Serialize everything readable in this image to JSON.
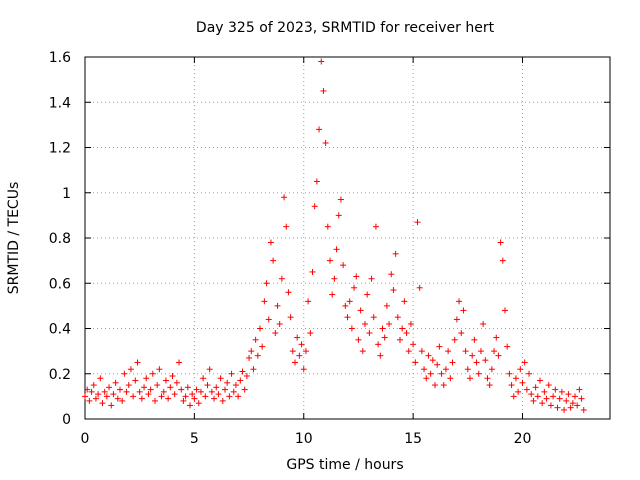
{
  "chart_data": {
    "type": "scatter",
    "title": "Day 325 of 2023, SRMTID for receiver hert",
    "xlabel": "GPS time / hours",
    "ylabel": "SRMTID / TECUs",
    "xlim": [
      0,
      24
    ],
    "ylim": [
      0,
      1.6
    ],
    "xticks": [
      0,
      5,
      10,
      15,
      20
    ],
    "yticks": [
      0,
      0.2,
      0.4,
      0.6,
      0.8,
      1,
      1.2,
      1.4,
      1.6
    ],
    "xtick_labels": [
      "0",
      "5",
      "10",
      "15",
      "20"
    ],
    "ytick_labels": [
      "0",
      "0.2",
      "0.4",
      "0.6",
      "0.8",
      "1",
      "1.2",
      "1.4",
      "1.6"
    ],
    "grid": true,
    "marker": "+",
    "series": [
      {
        "name": "SRMTID",
        "color": "#ff0000",
        "points": [
          [
            0.0,
            0.1
          ],
          [
            0.1,
            0.13
          ],
          [
            0.2,
            0.08
          ],
          [
            0.3,
            0.12
          ],
          [
            0.4,
            0.15
          ],
          [
            0.5,
            0.09
          ],
          [
            0.6,
            0.11
          ],
          [
            0.7,
            0.18
          ],
          [
            0.8,
            0.07
          ],
          [
            0.9,
            0.12
          ],
          [
            1.0,
            0.1
          ],
          [
            1.1,
            0.14
          ],
          [
            1.2,
            0.06
          ],
          [
            1.3,
            0.11
          ],
          [
            1.4,
            0.16
          ],
          [
            1.5,
            0.09
          ],
          [
            1.6,
            0.13
          ],
          [
            1.7,
            0.08
          ],
          [
            1.8,
            0.2
          ],
          [
            1.9,
            0.12
          ],
          [
            2.0,
            0.15
          ],
          [
            2.1,
            0.22
          ],
          [
            2.2,
            0.1
          ],
          [
            2.3,
            0.17
          ],
          [
            2.4,
            0.25
          ],
          [
            2.5,
            0.12
          ],
          [
            2.6,
            0.09
          ],
          [
            2.7,
            0.14
          ],
          [
            2.8,
            0.18
          ],
          [
            2.9,
            0.11
          ],
          [
            3.0,
            0.13
          ],
          [
            3.1,
            0.2
          ],
          [
            3.2,
            0.08
          ],
          [
            3.3,
            0.15
          ],
          [
            3.4,
            0.22
          ],
          [
            3.5,
            0.1
          ],
          [
            3.6,
            0.12
          ],
          [
            3.7,
            0.17
          ],
          [
            3.8,
            0.09
          ],
          [
            3.9,
            0.14
          ],
          [
            4.0,
            0.19
          ],
          [
            4.1,
            0.11
          ],
          [
            4.2,
            0.16
          ],
          [
            4.3,
            0.25
          ],
          [
            4.4,
            0.13
          ],
          [
            4.5,
            0.08
          ],
          [
            4.6,
            0.1
          ],
          [
            4.7,
            0.14
          ],
          [
            4.8,
            0.06
          ],
          [
            4.9,
            0.11
          ],
          [
            5.0,
            0.09
          ],
          [
            5.1,
            0.13
          ],
          [
            5.2,
            0.07
          ],
          [
            5.3,
            0.12
          ],
          [
            5.4,
            0.18
          ],
          [
            5.5,
            0.1
          ],
          [
            5.6,
            0.15
          ],
          [
            5.7,
            0.22
          ],
          [
            5.8,
            0.12
          ],
          [
            5.9,
            0.09
          ],
          [
            6.0,
            0.14
          ],
          [
            6.1,
            0.11
          ],
          [
            6.2,
            0.18
          ],
          [
            6.3,
            0.08
          ],
          [
            6.4,
            0.13
          ],
          [
            6.5,
            0.16
          ],
          [
            6.6,
            0.1
          ],
          [
            6.7,
            0.2
          ],
          [
            6.8,
            0.12
          ],
          [
            6.9,
            0.15
          ],
          [
            7.0,
            0.1
          ],
          [
            7.1,
            0.17
          ],
          [
            7.2,
            0.21
          ],
          [
            7.3,
            0.13
          ],
          [
            7.4,
            0.19
          ],
          [
            7.5,
            0.27
          ],
          [
            7.6,
            0.3
          ],
          [
            7.7,
            0.22
          ],
          [
            7.8,
            0.35
          ],
          [
            7.9,
            0.28
          ],
          [
            8.0,
            0.4
          ],
          [
            8.1,
            0.32
          ],
          [
            8.2,
            0.52
          ],
          [
            8.3,
            0.6
          ],
          [
            8.4,
            0.44
          ],
          [
            8.5,
            0.78
          ],
          [
            8.6,
            0.7
          ],
          [
            8.7,
            0.38
          ],
          [
            8.8,
            0.5
          ],
          [
            8.9,
            0.42
          ],
          [
            9.0,
            0.62
          ],
          [
            9.1,
            0.98
          ],
          [
            9.2,
            0.85
          ],
          [
            9.3,
            0.56
          ],
          [
            9.4,
            0.45
          ],
          [
            9.5,
            0.3
          ],
          [
            9.6,
            0.25
          ],
          [
            9.7,
            0.36
          ],
          [
            9.8,
            0.28
          ],
          [
            9.9,
            0.33
          ],
          [
            10.0,
            0.22
          ],
          [
            10.1,
            0.3
          ],
          [
            10.2,
            0.52
          ],
          [
            10.3,
            0.38
          ],
          [
            10.4,
            0.65
          ],
          [
            10.5,
            0.94
          ],
          [
            10.6,
            1.05
          ],
          [
            10.7,
            1.28
          ],
          [
            10.8,
            1.58
          ],
          [
            10.9,
            1.45
          ],
          [
            11.0,
            1.22
          ],
          [
            11.1,
            0.85
          ],
          [
            11.2,
            0.7
          ],
          [
            11.3,
            0.55
          ],
          [
            11.4,
            0.62
          ],
          [
            11.5,
            0.75
          ],
          [
            11.6,
            0.9
          ],
          [
            11.7,
            0.97
          ],
          [
            11.8,
            0.68
          ],
          [
            11.9,
            0.5
          ],
          [
            12.0,
            0.45
          ],
          [
            12.1,
            0.52
          ],
          [
            12.2,
            0.4
          ],
          [
            12.3,
            0.58
          ],
          [
            12.4,
            0.63
          ],
          [
            12.5,
            0.35
          ],
          [
            12.6,
            0.48
          ],
          [
            12.7,
            0.3
          ],
          [
            12.8,
            0.42
          ],
          [
            12.9,
            0.55
          ],
          [
            13.0,
            0.38
          ],
          [
            13.1,
            0.62
          ],
          [
            13.2,
            0.45
          ],
          [
            13.3,
            0.85
          ],
          [
            13.4,
            0.33
          ],
          [
            13.5,
            0.28
          ],
          [
            13.6,
            0.4
          ],
          [
            13.7,
            0.36
          ],
          [
            13.8,
            0.5
          ],
          [
            13.9,
            0.42
          ],
          [
            14.0,
            0.64
          ],
          [
            14.1,
            0.57
          ],
          [
            14.2,
            0.73
          ],
          [
            14.3,
            0.45
          ],
          [
            14.4,
            0.35
          ],
          [
            14.5,
            0.4
          ],
          [
            14.6,
            0.52
          ],
          [
            14.7,
            0.38
          ],
          [
            14.8,
            0.3
          ],
          [
            14.9,
            0.42
          ],
          [
            15.0,
            0.33
          ],
          [
            15.1,
            0.25
          ],
          [
            15.2,
            0.87
          ],
          [
            15.3,
            0.58
          ],
          [
            15.4,
            0.3
          ],
          [
            15.5,
            0.22
          ],
          [
            15.6,
            0.18
          ],
          [
            15.7,
            0.28
          ],
          [
            15.8,
            0.2
          ],
          [
            15.9,
            0.26
          ],
          [
            16.0,
            0.15
          ],
          [
            16.1,
            0.24
          ],
          [
            16.2,
            0.32
          ],
          [
            16.3,
            0.2
          ],
          [
            16.4,
            0.15
          ],
          [
            16.5,
            0.22
          ],
          [
            16.6,
            0.3
          ],
          [
            16.7,
            0.18
          ],
          [
            16.8,
            0.25
          ],
          [
            16.9,
            0.35
          ],
          [
            17.0,
            0.44
          ],
          [
            17.1,
            0.52
          ],
          [
            17.2,
            0.38
          ],
          [
            17.3,
            0.48
          ],
          [
            17.4,
            0.3
          ],
          [
            17.5,
            0.22
          ],
          [
            17.6,
            0.18
          ],
          [
            17.7,
            0.28
          ],
          [
            17.8,
            0.35
          ],
          [
            17.9,
            0.25
          ],
          [
            18.0,
            0.2
          ],
          [
            18.1,
            0.3
          ],
          [
            18.2,
            0.42
          ],
          [
            18.3,
            0.26
          ],
          [
            18.4,
            0.18
          ],
          [
            18.5,
            0.15
          ],
          [
            18.6,
            0.22
          ],
          [
            18.7,
            0.3
          ],
          [
            18.8,
            0.36
          ],
          [
            18.9,
            0.28
          ],
          [
            19.0,
            0.78
          ],
          [
            19.1,
            0.7
          ],
          [
            19.2,
            0.48
          ],
          [
            19.3,
            0.32
          ],
          [
            19.4,
            0.2
          ],
          [
            19.5,
            0.15
          ],
          [
            19.6,
            0.1
          ],
          [
            19.7,
            0.18
          ],
          [
            19.8,
            0.12
          ],
          [
            19.9,
            0.22
          ],
          [
            20.0,
            0.16
          ],
          [
            20.1,
            0.25
          ],
          [
            20.2,
            0.13
          ],
          [
            20.3,
            0.2
          ],
          [
            20.4,
            0.11
          ],
          [
            20.5,
            0.08
          ],
          [
            20.6,
            0.14
          ],
          [
            20.7,
            0.1
          ],
          [
            20.8,
            0.17
          ],
          [
            20.9,
            0.07
          ],
          [
            21.0,
            0.12
          ],
          [
            21.1,
            0.09
          ],
          [
            21.2,
            0.15
          ],
          [
            21.3,
            0.06
          ],
          [
            21.4,
            0.1
          ],
          [
            21.5,
            0.13
          ],
          [
            21.6,
            0.05
          ],
          [
            21.7,
            0.09
          ],
          [
            21.8,
            0.12
          ],
          [
            21.9,
            0.04
          ],
          [
            22.0,
            0.08
          ],
          [
            22.1,
            0.11
          ],
          [
            22.2,
            0.05
          ],
          [
            22.3,
            0.07
          ],
          [
            22.4,
            0.1
          ],
          [
            22.5,
            0.06
          ],
          [
            22.6,
            0.13
          ],
          [
            22.7,
            0.09
          ],
          [
            22.8,
            0.04
          ]
        ]
      }
    ]
  }
}
